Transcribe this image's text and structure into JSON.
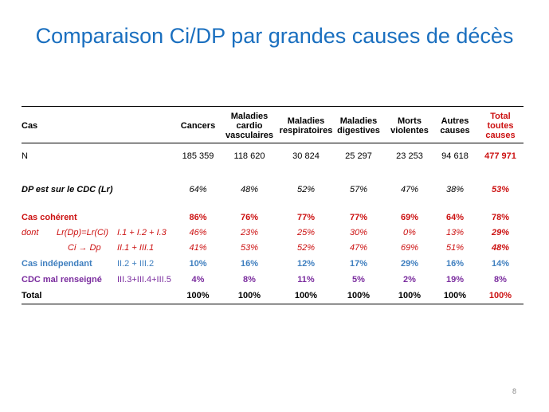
{
  "title": "Comparaison Ci/DP par grandes causes de décès",
  "page_number": "8",
  "colors": {
    "title": "#1a6fbf",
    "red": "#cc1111",
    "blue": "#3f7fbf",
    "purple": "#7a2c9e"
  },
  "headers": {
    "cas": "Cas",
    "cancers": "Cancers",
    "cardio": [
      "Maladies",
      "cardio",
      "vasculaires"
    ],
    "resp": [
      "Maladies",
      "respiratoires"
    ],
    "dig": [
      "Maladies",
      "digestives"
    ],
    "morts": [
      "Morts",
      "violentes"
    ],
    "autres": [
      "Autres",
      "causes"
    ],
    "total": [
      "Total",
      "toutes",
      "causes"
    ]
  },
  "rows": {
    "n": {
      "label": "N",
      "values": [
        "185 359",
        "118 620",
        "30 824",
        "25 297",
        "23 253",
        "94 618",
        "477 971"
      ]
    },
    "dp": {
      "label": "DP est sur le CDC (Lr)",
      "values": [
        "64%",
        "48%",
        "52%",
        "57%",
        "47%",
        "38%",
        "53%"
      ]
    },
    "coherent": {
      "label": "Cas cohérent",
      "values": [
        "86%",
        "76%",
        "77%",
        "77%",
        "69%",
        "64%",
        "78%"
      ]
    },
    "dont1": {
      "label": "dont",
      "sublabel": "Lr(Dp)=Lr(Ci)",
      "code": "I.1 + I.2 + I.3",
      "values": [
        "46%",
        "23%",
        "25%",
        "30%",
        "0%",
        "13%",
        "29%"
      ]
    },
    "dont2": {
      "sublabel": "Ci → Dp",
      "code": "II.1 + III.1",
      "values": [
        "41%",
        "53%",
        "52%",
        "47%",
        "69%",
        "51%",
        "48%"
      ]
    },
    "indep": {
      "label": "Cas indépendant",
      "code": "II.2 + III.2",
      "values": [
        "10%",
        "16%",
        "12%",
        "17%",
        "29%",
        "16%",
        "14%"
      ]
    },
    "cdc": {
      "label": "CDC mal renseigné",
      "code": "III.3+III.4+III.5",
      "values": [
        "4%",
        "8%",
        "11%",
        "5%",
        "2%",
        "19%",
        "8%"
      ]
    },
    "total": {
      "label": "Total",
      "values": [
        "100%",
        "100%",
        "100%",
        "100%",
        "100%",
        "100%",
        "100%"
      ]
    }
  }
}
